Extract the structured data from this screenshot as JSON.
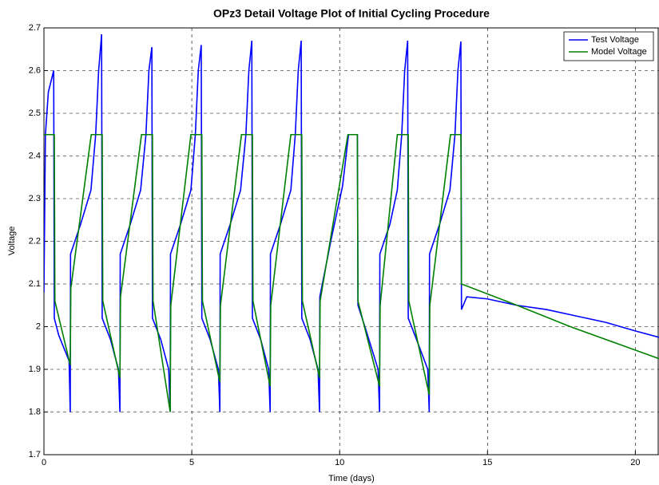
{
  "chart_data": {
    "type": "line",
    "title": "OPz3 Detail Voltage Plot of Initial Cycling Procedure",
    "xlabel": "Time (days)",
    "ylabel": "Voltage",
    "xlim": [
      0,
      20.8
    ],
    "ylim": [
      1.7,
      2.7
    ],
    "xticks": [
      0,
      5,
      10,
      15,
      20
    ],
    "yticks": [
      1.7,
      1.8,
      1.9,
      2,
      2.1,
      2.2,
      2.3,
      2.4,
      2.5,
      2.6,
      2.7
    ],
    "grid": true,
    "legend": "upper right",
    "series": [
      {
        "name": "Test Voltage",
        "color": "#0000ff",
        "x": [
          0,
          0.05,
          0.15,
          0.33,
          0.35,
          0.5,
          0.85,
          0.89,
          0.9,
          1.24,
          1.59,
          1.75,
          1.85,
          1.95,
          1.97,
          2.25,
          2.52,
          2.57,
          2.58,
          2.92,
          3.27,
          3.45,
          3.55,
          3.65,
          3.67,
          3.95,
          4.22,
          4.27,
          4.28,
          4.62,
          4.97,
          5.12,
          5.22,
          5.32,
          5.34,
          5.62,
          5.9,
          5.95,
          5.96,
          6.3,
          6.65,
          6.83,
          6.93,
          7.03,
          7.05,
          7.33,
          7.6,
          7.65,
          7.66,
          8.0,
          8.35,
          8.5,
          8.6,
          8.7,
          8.72,
          9.0,
          9.27,
          9.32,
          9.33,
          9.7,
          10.1,
          10.3,
          10.6,
          10.62,
          10.9,
          11.3,
          11.35,
          11.36,
          11.7,
          11.95,
          12.1,
          12.2,
          12.3,
          12.32,
          12.6,
          12.98,
          13.03,
          13.04,
          13.38,
          13.73,
          13.9,
          14.0,
          14.1,
          14.12,
          14.3,
          15,
          16,
          17,
          18,
          19,
          20,
          20.8
        ],
        "values": [
          2.08,
          2.45,
          2.55,
          2.6,
          2.02,
          1.98,
          1.92,
          1.8,
          2.17,
          2.24,
          2.32,
          2.45,
          2.6,
          2.685,
          2.02,
          1.97,
          1.9,
          1.8,
          2.17,
          2.24,
          2.32,
          2.45,
          2.6,
          2.655,
          2.02,
          1.97,
          1.9,
          1.8,
          2.17,
          2.24,
          2.32,
          2.45,
          2.6,
          2.66,
          2.02,
          1.97,
          1.9,
          1.8,
          2.17,
          2.24,
          2.32,
          2.45,
          2.6,
          2.67,
          2.02,
          1.97,
          1.9,
          1.8,
          2.17,
          2.24,
          2.32,
          2.45,
          2.6,
          2.67,
          2.02,
          1.97,
          1.9,
          1.8,
          2.07,
          2.2,
          2.33,
          2.45,
          2.45,
          2.05,
          1.99,
          1.9,
          1.8,
          2.17,
          2.24,
          2.32,
          2.45,
          2.6,
          2.67,
          2.02,
          1.97,
          1.9,
          1.8,
          2.17,
          2.24,
          2.32,
          2.45,
          2.6,
          2.668,
          2.04,
          2.07,
          2.065,
          2.05,
          2.04,
          2.025,
          2.01,
          1.99,
          1.975
        ]
      },
      {
        "name": "Model Voltage",
        "color": "#008000",
        "x": [
          0,
          0.35,
          0.37,
          0.89,
          0.91,
          1.6,
          1.97,
          1.99,
          2.57,
          2.59,
          3.3,
          3.67,
          3.69,
          4.27,
          4.29,
          4.97,
          5.34,
          5.36,
          5.95,
          5.97,
          6.68,
          7.05,
          7.07,
          7.65,
          7.67,
          8.35,
          8.72,
          8.74,
          9.32,
          9.34,
          10.28,
          10.6,
          10.62,
          11.35,
          11.37,
          11.95,
          12.32,
          12.34,
          13.03,
          13.05,
          13.75,
          14.1,
          14.12,
          16,
          17.8,
          19.8,
          20.8
        ],
        "values": [
          2.45,
          2.45,
          2.06,
          1.91,
          2.09,
          2.45,
          2.45,
          2.06,
          1.88,
          2.07,
          2.45,
          2.45,
          2.06,
          1.8,
          2.05,
          2.45,
          2.45,
          2.06,
          1.87,
          2.05,
          2.45,
          2.45,
          2.06,
          1.86,
          2.05,
          2.45,
          2.45,
          2.06,
          1.88,
          2.06,
          2.45,
          2.45,
          2.06,
          1.86,
          2.05,
          2.45,
          2.45,
          2.06,
          1.84,
          2.05,
          2.45,
          2.45,
          2.1,
          2.05,
          2.0,
          1.95,
          1.925
        ]
      }
    ]
  }
}
